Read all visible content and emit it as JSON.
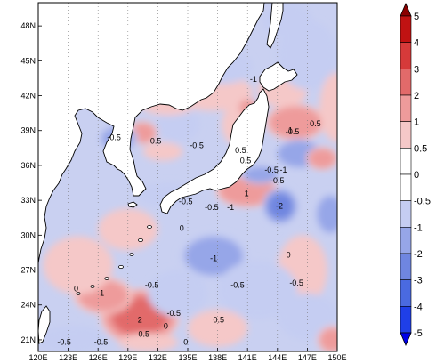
{
  "chart_data": {
    "type": "heatmap",
    "region": "Northwest Pacific / East Asian seas",
    "x_axis": {
      "range": [
        120,
        150
      ],
      "tick_values": [
        120,
        123,
        126,
        129,
        132,
        135,
        138,
        141,
        144,
        147,
        150
      ],
      "tick_labels": [
        "120E",
        "123E",
        "126E",
        "129E",
        "132E",
        "135E",
        "138E",
        "141E",
        "144E",
        "147E",
        "150E"
      ]
    },
    "y_axis": {
      "range": [
        20,
        50
      ],
      "tick_values": [
        21,
        24,
        27,
        30,
        33,
        36,
        39,
        42,
        45,
        48
      ],
      "tick_labels": [
        "21N",
        "24N",
        "27N",
        "30N",
        "33N",
        "36N",
        "39N",
        "42N",
        "45N",
        "48N"
      ]
    },
    "grid": "dotted-meridians",
    "colorbar": {
      "placement": "right",
      "boundaries": [
        -5,
        -4,
        -3,
        -2,
        -1,
        -0.5,
        0,
        0.5,
        1,
        2,
        3,
        4,
        5
      ],
      "labels": [
        "-5",
        "-4",
        "-3",
        "-2",
        "-1",
        "-0.5",
        "0",
        "0.5",
        "1",
        "2",
        "3",
        "4",
        "5"
      ],
      "colors": [
        "#0000e6",
        "#1f3fe8",
        "#4a6ae0",
        "#6f86e0",
        "#96a6e8",
        "#c5cdf2",
        "#ffffff",
        "#f5c8c8",
        "#ee9b9b",
        "#e26a6a",
        "#d63a3a",
        "#c01212",
        "#8a0000"
      ],
      "extend": "both"
    },
    "contour_labels": [
      {
        "text": "-1",
        "lon": 141.6,
        "lat": 43.4
      },
      {
        "text": "-0.5",
        "lon": 145.5,
        "lat": 38.9
      },
      {
        "text": "0.5",
        "lon": 147.8,
        "lat": 39.6
      },
      {
        "text": "1",
        "lon": 145.3,
        "lat": 39.0
      },
      {
        "text": "-0.5",
        "lon": 127.6,
        "lat": 38.4
      },
      {
        "text": "0.5",
        "lon": 131.8,
        "lat": 38.1
      },
      {
        "text": "-0.5",
        "lon": 135.9,
        "lat": 37.7
      },
      {
        "text": "0.5",
        "lon": 140.3,
        "lat": 37.3
      },
      {
        "text": "0.5",
        "lon": 140.8,
        "lat": 36.4
      },
      {
        "text": "-0.5",
        "lon": 143.4,
        "lat": 35.6
      },
      {
        "text": "-1",
        "lon": 144.6,
        "lat": 35.6
      },
      {
        "text": "-0.5",
        "lon": 144.0,
        "lat": 34.7
      },
      {
        "text": "1",
        "lon": 140.9,
        "lat": 33.6
      },
      {
        "text": "-2",
        "lon": 144.2,
        "lat": 32.5
      },
      {
        "text": "-0.5",
        "lon": 134.8,
        "lat": 32.9
      },
      {
        "text": "-0.5",
        "lon": 137.4,
        "lat": 32.4
      },
      {
        "text": "-1",
        "lon": 139.3,
        "lat": 32.4
      },
      {
        "text": "0",
        "lon": 134.4,
        "lat": 30.6
      },
      {
        "text": "-1",
        "lon": 137.6,
        "lat": 28.0
      },
      {
        "text": "0",
        "lon": 145.1,
        "lat": 28.3
      },
      {
        "text": "-0.5",
        "lon": 131.4,
        "lat": 25.7
      },
      {
        "text": "0",
        "lon": 123.8,
        "lat": 25.4
      },
      {
        "text": "1",
        "lon": 126.4,
        "lat": 25.0
      },
      {
        "text": "-0.5",
        "lon": 140.0,
        "lat": 25.7
      },
      {
        "text": "-0.5",
        "lon": 145.9,
        "lat": 25.9
      },
      {
        "text": "-0.5",
        "lon": 133.6,
        "lat": 23.3
      },
      {
        "text": "2",
        "lon": 130.2,
        "lat": 22.7
      },
      {
        "text": "0.5",
        "lon": 138.1,
        "lat": 22.7
      },
      {
        "text": "0",
        "lon": 132.8,
        "lat": 22.2
      },
      {
        "text": "0.5",
        "lon": 130.6,
        "lat": 21.5
      },
      {
        "text": "-0.5",
        "lon": 122.6,
        "lat": 20.8
      },
      {
        "text": "-0.5",
        "lon": 126.3,
        "lat": 20.8
      },
      {
        "text": "0",
        "lon": 134.8,
        "lat": 20.8
      }
    ],
    "anomaly_fields": [
      {
        "lon": 130.2,
        "lat": 23.0,
        "value": 2.4,
        "rx": 4.0,
        "ry": 2.4
      },
      {
        "lon": 126.5,
        "lat": 24.8,
        "value": 1.1,
        "rx": 3.0,
        "ry": 1.6
      },
      {
        "lon": 141.0,
        "lat": 33.8,
        "value": 1.8,
        "rx": 3.2,
        "ry": 1.4
      },
      {
        "lon": 144.3,
        "lat": 32.5,
        "value": -2.2,
        "rx": 1.8,
        "ry": 1.6
      },
      {
        "lon": 149.3,
        "lat": 31.8,
        "value": -1.6,
        "rx": 1.5,
        "ry": 1.8
      },
      {
        "lon": 137.6,
        "lat": 28.2,
        "value": -1.0,
        "rx": 3.5,
        "ry": 2.0
      },
      {
        "lon": 124.0,
        "lat": 27.4,
        "value": 0.7,
        "rx": 3.5,
        "ry": 2.5
      },
      {
        "lon": 146.5,
        "lat": 27.0,
        "value": 0.9,
        "rx": 2.5,
        "ry": 3.0
      },
      {
        "lon": 142.0,
        "lat": 25.3,
        "value": -0.9,
        "rx": 4.0,
        "ry": 2.5
      },
      {
        "lon": 134.0,
        "lat": 25.0,
        "value": -0.8,
        "rx": 3.0,
        "ry": 2.0
      },
      {
        "lon": 138.0,
        "lat": 22.0,
        "value": 0.6,
        "rx": 3.0,
        "ry": 1.6
      },
      {
        "lon": 123.5,
        "lat": 21.0,
        "value": -0.8,
        "rx": 3.5,
        "ry": 1.2
      },
      {
        "lon": 147.0,
        "lat": 23.0,
        "value": -0.7,
        "rx": 3.0,
        "ry": 2.0
      },
      {
        "lon": 145.8,
        "lat": 39.7,
        "value": 1.5,
        "rx": 3.0,
        "ry": 1.6
      },
      {
        "lon": 146.2,
        "lat": 37.0,
        "value": -1.5,
        "rx": 2.5,
        "ry": 1.3
      },
      {
        "lon": 148.5,
        "lat": 36.6,
        "value": 1.2,
        "rx": 1.6,
        "ry": 1.0
      },
      {
        "lon": 142.3,
        "lat": 35.2,
        "value": -1.3,
        "rx": 2.0,
        "ry": 0.8
      },
      {
        "lon": 140.0,
        "lat": 39.5,
        "value": 0.8,
        "rx": 1.6,
        "ry": 1.8
      },
      {
        "lon": 130.5,
        "lat": 38.8,
        "value": 1.2,
        "rx": 1.5,
        "ry": 1.0
      },
      {
        "lon": 128.0,
        "lat": 38.3,
        "value": -1.0,
        "rx": 2.0,
        "ry": 1.2
      },
      {
        "lon": 134.0,
        "lat": 39.5,
        "value": -0.7,
        "rx": 2.2,
        "ry": 1.5
      },
      {
        "lon": 132.5,
        "lat": 37.2,
        "value": 0.8,
        "rx": 2.0,
        "ry": 0.8
      },
      {
        "lon": 137.5,
        "lat": 42.3,
        "value": 0.7,
        "rx": 4.0,
        "ry": 1.6
      },
      {
        "lon": 133.0,
        "lat": 41.5,
        "value": 0.6,
        "rx": 3.0,
        "ry": 1.2
      },
      {
        "lon": 138.5,
        "lat": 44.5,
        "value": -0.6,
        "rx": 3.0,
        "ry": 1.5
      },
      {
        "lon": 144.5,
        "lat": 42.5,
        "value": 0.8,
        "rx": 2.5,
        "ry": 1.5
      },
      {
        "lon": 147.0,
        "lat": 45.5,
        "value": -0.7,
        "rx": 3.0,
        "ry": 3.0
      },
      {
        "lon": 145.0,
        "lat": 48.5,
        "value": -0.8,
        "rx": 2.5,
        "ry": 1.5
      },
      {
        "lon": 141.0,
        "lat": 41.0,
        "value": 1.1,
        "rx": 1.0,
        "ry": 0.8
      },
      {
        "lon": 150.0,
        "lat": 41.0,
        "value": 0.8,
        "rx": 1.8,
        "ry": 3.0
      },
      {
        "lon": 133.0,
        "lat": 33.5,
        "value": -0.7,
        "rx": 3.0,
        "ry": 1.0
      },
      {
        "lon": 129.0,
        "lat": 30.5,
        "value": 0.8,
        "rx": 3.0,
        "ry": 1.8
      },
      {
        "lon": 131.0,
        "lat": 20.8,
        "value": 0.7,
        "rx": 3.0,
        "ry": 0.8
      },
      {
        "lon": 149.5,
        "lat": 21.0,
        "value": 1.2,
        "rx": 1.5,
        "ry": 1.2
      }
    ]
  }
}
